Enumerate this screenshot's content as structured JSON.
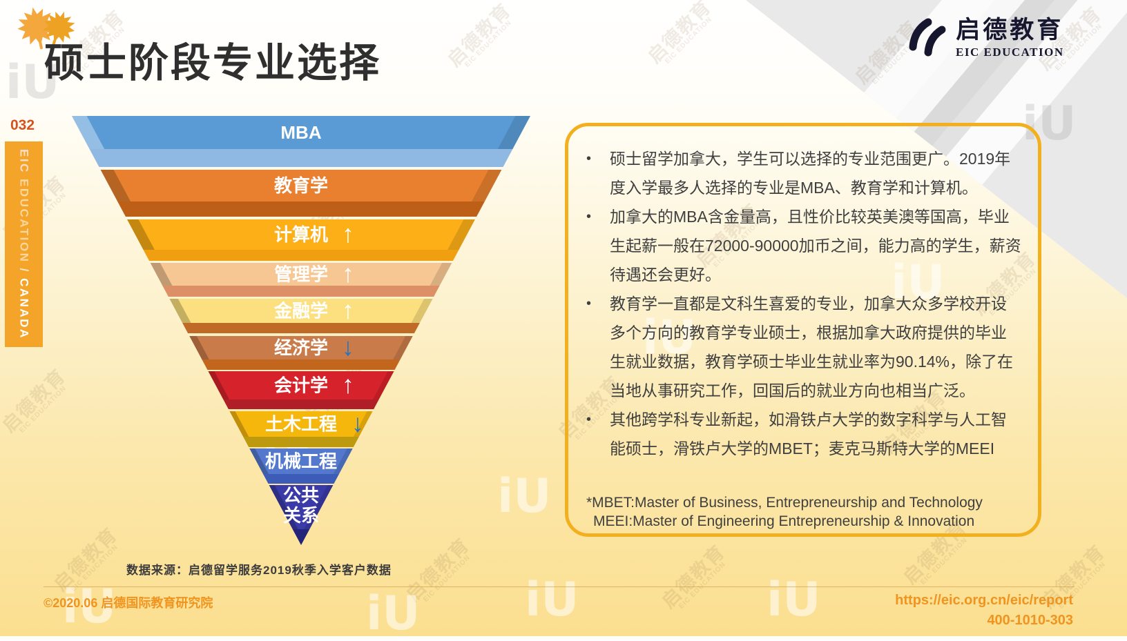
{
  "slide": {
    "title": "硕士阶段专业选择",
    "page_number": "032",
    "side_tab": {
      "org_short": "EIC",
      "org_rest": "EDUCATION",
      "separator": "/",
      "region": "CANADA"
    },
    "logo": {
      "name_cn": "启德教育",
      "name_en": "EIC EDUCATION"
    },
    "source_note": "数据来源：启德留学服务2019秋季入学客户数据",
    "footer": {
      "copyright": "©2020.06 启德国际教育研究院",
      "url": "https://eic.org.cn/eic/report",
      "phone": "400-1010-303"
    },
    "watermark": {
      "text_cn": "启德教育",
      "text_en": "EIC EDUCATION",
      "glyph": "iU"
    }
  },
  "chart_data": {
    "type": "funnel",
    "title": "硕士阶段专业选择",
    "orientation": "inverted pyramid, top = most-chosen major, ranked by 2019 fall-intake enrolment",
    "categories": [
      "MBA",
      "教育学",
      "计算机",
      "管理学",
      "金融学",
      "经济学",
      "会计学",
      "土木工程",
      "机械工程",
      "公共关系"
    ],
    "rank": [
      1,
      2,
      3,
      4,
      5,
      6,
      7,
      8,
      9,
      10
    ],
    "trend": [
      "",
      "",
      "up",
      "up",
      "up",
      "down",
      "up",
      "down",
      "",
      ""
    ],
    "layer_labels": [
      "MBA",
      "教育学",
      "计算机",
      "管理学",
      "金融学",
      "经济学",
      "会计学",
      "土木工程",
      "机械工程",
      "公共\n关系"
    ],
    "layer_colors": [
      "#5b9bd5",
      "#e8802f",
      "#fcaf17",
      "#f6c693",
      "#fcdf7e",
      "#c97c4a",
      "#d6222b",
      "#f6b70d",
      "#5378cd",
      "#3a3aa8"
    ],
    "strip_colors": [
      "#8fb8e2",
      "#bd5f16",
      "#ef9f0f",
      "#dd9066",
      "#bf6a26",
      "#c2661d",
      "#b01f28",
      "#bd990f",
      "#3c5cb8",
      ""
    ],
    "tip_color": "#23237a",
    "arrow_colors": {
      "up": "#ffffff",
      "down": "#1e74c8"
    },
    "source": "数据来源：启德留学服务2019秋季入学客户数据"
  },
  "info_box": {
    "border_color": "#f2b01e",
    "bullets": [
      "硕士留学加拿大，学生可以选择的专业范围更广。2019年度入学最多人选择的专业是MBA、教育学和计算机。",
      "加拿大的MBA含金量高，且性价比较英美澳等国高，毕业生起薪一般在72000-90000加币之间，能力高的学生，薪资待遇还会更好。",
      "教育学一直都是文科生喜爱的专业，加拿大众多学校开设多个方向的教育学专业硕士，根据加拿大政府提供的毕业生就业数据，教育学硕士毕业生就业率为90.14%，除了在当地从事研究工作，回国后的就业方向也相当广泛。",
      "其他跨学科专业新起，如滑铁卢大学的数字科学与人工智能硕士，滑铁卢大学的MBET；麦克马斯特大学的MEEI"
    ],
    "footnotes": [
      "*MBET:Master of Business, Entrepreneurship and Technology",
      "MEEI:Master of Engineering Entrepreneurship & Innovation"
    ]
  },
  "colors": {
    "accent_orange": "#f5a42a",
    "footer_orange": "#f0941f",
    "page_number_orange": "#d4531d",
    "title_text": "#2f2f2f",
    "body_text": "#3f3f3f",
    "box_border": "#f2b01e"
  }
}
